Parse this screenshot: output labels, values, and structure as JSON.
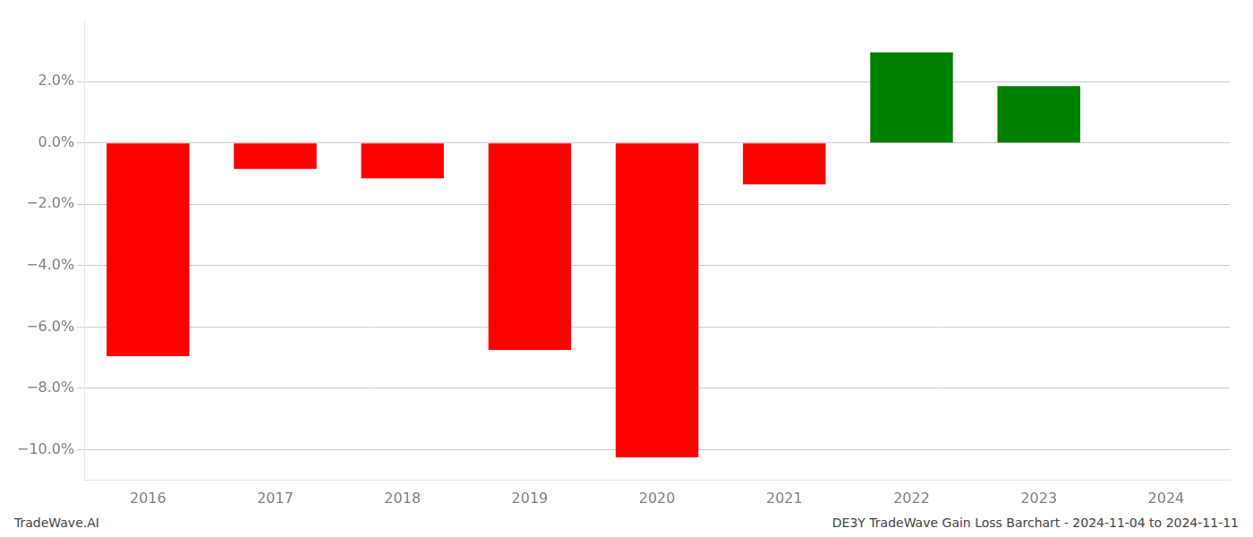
{
  "chart_data": {
    "type": "bar",
    "categories": [
      "2016",
      "2017",
      "2018",
      "2019",
      "2020",
      "2021",
      "2022",
      "2023",
      "2024"
    ],
    "values": [
      -0.0695,
      -0.0085,
      -0.0115,
      -0.0675,
      -0.1025,
      -0.0135,
      0.0295,
      0.0185,
      null
    ],
    "colors": [
      "#ff0000",
      "#ff0000",
      "#ff0000",
      "#ff0000",
      "#ff0000",
      "#ff0000",
      "#008000",
      "#008000",
      null
    ],
    "ylim": [
      -0.11,
      0.04
    ],
    "yticks": [
      {
        "value": -0.1,
        "label": "−10.0%"
      },
      {
        "value": -0.08,
        "label": "−8.0%"
      },
      {
        "value": -0.06,
        "label": "−6.0%"
      },
      {
        "value": -0.04,
        "label": "−4.0%"
      },
      {
        "value": -0.02,
        "label": "−2.0%"
      },
      {
        "value": 0.0,
        "label": "0.0%"
      },
      {
        "value": 0.02,
        "label": "2.0%"
      }
    ],
    "grid": true,
    "annotations": [
      "TradeWave.AI",
      "DE3Y TradeWave Gain Loss Barchart - 2024-11-04 to 2024-11-11"
    ]
  }
}
